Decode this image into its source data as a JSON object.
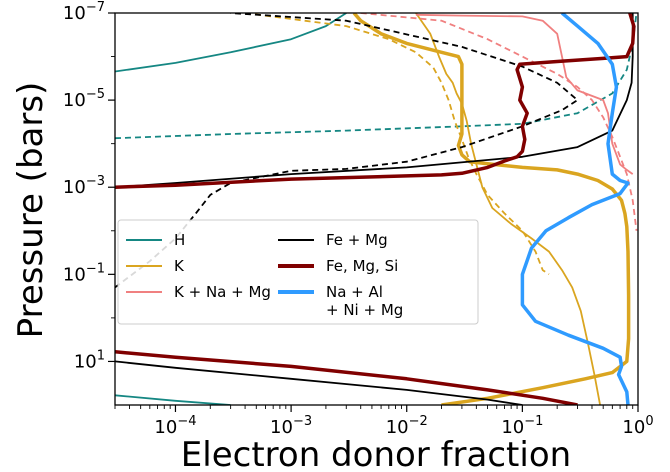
{
  "chart_data": {
    "type": "line",
    "title": "",
    "xlabel": "Electron donor fraction",
    "ylabel": "Pressure (bars)",
    "x_scale": "log",
    "y_scale": "log",
    "y_inverted": true,
    "xlim": [
      3e-05,
      1
    ],
    "ylim": [
      100,
      1e-07
    ],
    "grid": false,
    "legend_position": "center-left",
    "x_ticks": [
      {
        "value": 0.0001,
        "label": "10^-4"
      },
      {
        "value": 0.001,
        "label": "10^-3"
      },
      {
        "value": 0.01,
        "label": "10^-2"
      },
      {
        "value": 0.1,
        "label": "10^-1"
      },
      {
        "value": 1,
        "label": "10^0"
      }
    ],
    "y_ticks": [
      {
        "value": 1e-07,
        "label": "10^-7"
      },
      {
        "value": 1e-05,
        "label": "10^-5"
      },
      {
        "value": 0.001,
        "label": "10^-3"
      },
      {
        "value": 0.1,
        "label": "10^-1"
      },
      {
        "value": 10,
        "label": "10^1"
      }
    ],
    "legend": [
      {
        "label_lines": [
          "H"
        ],
        "color": "#158783",
        "width": 2
      },
      {
        "label_lines": [
          "K"
        ],
        "color": "#daa520",
        "width": 2
      },
      {
        "label_lines": [
          "K + Na + Mg"
        ],
        "color": "#f08080",
        "width": 2
      },
      {
        "label_lines": [
          "Fe + Mg"
        ],
        "color": "#000000",
        "width": 2
      },
      {
        "label_lines": [
          "Fe, Mg, Si"
        ],
        "color": "#800000",
        "width": 4
      },
      {
        "label_lines": [
          "Na + Al",
          "+ Ni + Mg"
        ],
        "color": "#2f9bff",
        "width": 4
      }
    ],
    "series": [
      {
        "name": "H",
        "color": "#158783",
        "width": 1.8,
        "dash": false,
        "points": [
          [
            3e-05,
            2.2e-06
          ],
          [
            0.0001,
            1.4e-06
          ],
          [
            0.0003,
            8e-07
          ],
          [
            0.001,
            4e-07
          ],
          [
            0.002,
            2e-07
          ],
          [
            0.003,
            1e-07
          ]
        ]
      },
      {
        "name": "H",
        "color": "#158783",
        "width": 1.8,
        "dash": false,
        "points": [
          [
            3e-05,
            60
          ],
          [
            0.0001,
            80
          ],
          [
            0.0003,
            100
          ]
        ]
      },
      {
        "name": "H",
        "color": "#158783",
        "width": 1.8,
        "dash": true,
        "points": [
          [
            3e-05,
            7.5e-05
          ],
          [
            0.0003,
            6e-05
          ],
          [
            0.003,
            5e-05
          ],
          [
            0.03,
            4e-05
          ],
          [
            0.1,
            3.5e-05
          ],
          [
            0.3,
            2e-05
          ],
          [
            0.6,
            7e-06
          ],
          [
            0.8,
            2e-06
          ],
          [
            0.9,
            5e-07
          ],
          [
            0.97,
            1e-07
          ]
        ]
      },
      {
        "name": "K",
        "color": "#daa520",
        "width": 1.8,
        "dash": true,
        "points": [
          [
            0.0004,
            1e-07
          ],
          [
            0.003,
            2e-07
          ],
          [
            0.007,
            4e-07
          ],
          [
            0.012,
            8e-07
          ],
          [
            0.017,
            1.8e-06
          ],
          [
            0.02,
            4e-06
          ],
          [
            0.023,
            1e-05
          ],
          [
            0.026,
            3e-05
          ],
          [
            0.03,
            8e-05
          ],
          [
            0.034,
            0.0002
          ],
          [
            0.04,
            0.0005
          ],
          [
            0.05,
            0.0015
          ],
          [
            0.07,
            0.004
          ],
          [
            0.1,
            0.01
          ],
          [
            0.13,
            0.03
          ],
          [
            0.15,
            0.08
          ],
          [
            0.17,
            0.1
          ]
        ]
      },
      {
        "name": "K",
        "color": "#daa520",
        "width": 1.8,
        "dash": false,
        "points": [
          [
            0.012,
            1e-07
          ],
          [
            0.016,
            3e-07
          ],
          [
            0.019,
            1e-06
          ],
          [
            0.022,
            2.5e-06
          ],
          [
            0.025,
            4e-06
          ],
          [
            0.027,
            7e-06
          ],
          [
            0.03,
            1.2e-05
          ],
          [
            0.033,
            3e-05
          ],
          [
            0.036,
            0.0001
          ],
          [
            0.04,
            0.0003
          ],
          [
            0.045,
            0.001
          ],
          [
            0.055,
            0.003
          ],
          [
            0.08,
            0.007
          ],
          [
            0.12,
            0.015
          ],
          [
            0.17,
            0.03
          ],
          [
            0.22,
            0.08
          ],
          [
            0.27,
            0.2
          ],
          [
            0.32,
            0.7
          ],
          [
            0.37,
            4
          ],
          [
            0.42,
            20
          ],
          [
            0.47,
            100
          ]
        ]
      },
      {
        "name": "K",
        "color": "#daa520",
        "width": 3.5,
        "dash": false,
        "points": [
          [
            0.0035,
            1e-07
          ],
          [
            0.004,
            1.5e-07
          ],
          [
            0.005,
            2.2e-07
          ],
          [
            0.006,
            3e-07
          ],
          [
            0.01,
            5e-07
          ],
          [
            0.02,
            8e-07
          ],
          [
            0.028,
            1e-06
          ],
          [
            0.03,
            1.5e-06
          ],
          [
            0.03,
            1e-05
          ],
          [
            0.03,
            6e-05
          ],
          [
            0.028,
            0.00011
          ],
          [
            0.03,
            0.00018
          ],
          [
            0.035,
            0.00026
          ],
          [
            0.05,
            0.00029
          ],
          [
            0.1,
            0.00035
          ],
          [
            0.2,
            0.0004
          ],
          [
            0.3,
            0.0005
          ],
          [
            0.45,
            0.0007
          ],
          [
            0.6,
            0.0011
          ],
          [
            0.72,
            0.002
          ],
          [
            0.77,
            0.004
          ],
          [
            0.8,
            0.008
          ],
          [
            0.82,
            0.03
          ],
          [
            0.83,
            0.3
          ],
          [
            0.83,
            3
          ],
          [
            0.8,
            10
          ],
          [
            0.6,
            18
          ],
          [
            0.35,
            25
          ],
          [
            0.15,
            40
          ],
          [
            0.05,
            70
          ],
          [
            0.02,
            100
          ]
        ]
      },
      {
        "name": "K + Na + Mg",
        "color": "#f08080",
        "width": 1.8,
        "dash": false,
        "points": [
          [
            0.012,
            1.1e-07
          ],
          [
            0.03,
            1.15e-07
          ],
          [
            0.1,
            1.2e-07
          ],
          [
            0.15,
            1.5e-07
          ],
          [
            0.2,
            3e-07
          ],
          [
            0.22,
            1e-06
          ],
          [
            0.24,
            3e-06
          ],
          [
            0.3,
            6e-06
          ],
          [
            0.4,
            8e-06
          ],
          [
            0.5,
            1e-05
          ],
          [
            0.55,
            2e-05
          ],
          [
            0.6,
            0.0001
          ],
          [
            0.7,
            0.0003
          ],
          [
            0.8,
            0.0004
          ],
          [
            0.9,
            0.0005
          ]
        ]
      },
      {
        "name": "K + Na + Mg",
        "color": "#f08080",
        "width": 1.8,
        "dash": true,
        "points": [
          [
            0.004,
            1e-07
          ],
          [
            0.02,
            1.5e-07
          ],
          [
            0.05,
            4e-07
          ],
          [
            0.1,
            1e-06
          ],
          [
            0.2,
            2.5e-06
          ],
          [
            0.3,
            5e-06
          ],
          [
            0.4,
            1e-05
          ],
          [
            0.5,
            2.5e-05
          ],
          [
            0.6,
            7e-05
          ],
          [
            0.7,
            0.0002
          ],
          [
            0.8,
            0.0005
          ],
          [
            0.9,
            0.002
          ],
          [
            0.97,
            0.01
          ]
        ]
      },
      {
        "name": "Fe + Mg",
        "color": "#000000",
        "width": 1.8,
        "dash": true,
        "points": [
          [
            3e-05,
            0.2
          ],
          [
            6e-05,
            0.05
          ],
          [
            0.0001,
            0.015
          ],
          [
            0.00015,
            0.004
          ],
          [
            0.0002,
            0.0015
          ],
          [
            0.0003,
            0.0008
          ],
          [
            0.001,
            0.00042
          ],
          [
            0.003,
            0.00038
          ],
          [
            0.01,
            0.00026
          ],
          [
            0.03,
            0.00012
          ],
          [
            0.1,
            4e-05
          ],
          [
            0.22,
            1.7e-05
          ],
          [
            0.3,
            1e-05
          ],
          [
            0.2,
            4e-06
          ],
          [
            0.1,
            1.7e-06
          ],
          [
            0.03,
            6e-07
          ],
          [
            0.003,
            1.5e-07
          ],
          [
            0.0003,
            1e-07
          ]
        ]
      },
      {
        "name": "Fe + Mg",
        "color": "#000000",
        "width": 1.8,
        "dash": false,
        "points": [
          [
            3e-05,
            0.001
          ],
          [
            0.0001,
            0.0008
          ],
          [
            0.001,
            0.0005
          ],
          [
            0.01,
            0.00035
          ],
          [
            0.1,
            0.0002
          ],
          [
            0.3,
            0.00012
          ],
          [
            0.6,
            5e-05
          ],
          [
            0.8,
            1e-05
          ],
          [
            0.88,
            4e-06
          ],
          [
            0.9,
            1e-06
          ],
          [
            0.9,
            1e-07
          ]
        ]
      },
      {
        "name": "Fe + Mg",
        "color": "#000000",
        "width": 1.8,
        "dash": false,
        "points": [
          [
            3e-05,
            10
          ],
          [
            0.0001,
            14
          ],
          [
            0.001,
            25
          ],
          [
            0.01,
            45
          ],
          [
            0.05,
            75
          ],
          [
            0.1,
            100
          ]
        ]
      },
      {
        "name": "Fe, Mg, Si",
        "color": "#800000",
        "width": 3.5,
        "dash": false,
        "points": [
          [
            3e-05,
            0.001
          ],
          [
            0.0001,
            0.0009
          ],
          [
            0.001,
            0.00065
          ],
          [
            0.01,
            0.00055
          ],
          [
            0.02,
            0.00052
          ],
          [
            0.03,
            0.00048
          ],
          [
            0.05,
            0.00035
          ],
          [
            0.07,
            0.00025
          ],
          [
            0.09,
            0.0002
          ],
          [
            0.1,
            0.00015
          ],
          [
            0.105,
            8e-05
          ],
          [
            0.1,
            4e-05
          ],
          [
            0.11,
            2e-05
          ],
          [
            0.095,
            1e-05
          ],
          [
            0.1,
            5e-06
          ],
          [
            0.09,
            2e-06
          ],
          [
            0.095,
            1.5e-06
          ],
          [
            0.2,
            1.3e-06
          ],
          [
            0.5,
            1.1e-06
          ],
          [
            0.8,
            1e-06
          ],
          [
            0.9,
            5e-07
          ],
          [
            0.92,
            2e-07
          ],
          [
            0.85,
            1e-07
          ]
        ]
      },
      {
        "name": "Fe, Mg, Si",
        "color": "#800000",
        "width": 3.5,
        "dash": false,
        "points": [
          [
            3e-05,
            6
          ],
          [
            0.0001,
            8
          ],
          [
            0.001,
            13
          ],
          [
            0.01,
            25
          ],
          [
            0.05,
            45
          ],
          [
            0.15,
            70
          ],
          [
            0.3,
            100
          ]
        ]
      },
      {
        "name": "Na + Al + Ni + Mg",
        "color": "#2f9bff",
        "width": 3.5,
        "dash": false,
        "points": [
          [
            0.22,
            1e-07
          ],
          [
            0.3,
            2e-07
          ],
          [
            0.45,
            5e-07
          ],
          [
            0.6,
            1.5e-06
          ],
          [
            0.65,
            5e-06
          ],
          [
            0.6,
            2e-05
          ],
          [
            0.55,
            0.0001
          ],
          [
            0.6,
            0.0005
          ],
          [
            0.7,
            0.0007
          ],
          [
            0.82,
            0.0008
          ],
          [
            0.7,
            0.0014
          ],
          [
            0.4,
            0.0025
          ],
          [
            0.25,
            0.005
          ],
          [
            0.16,
            0.01
          ],
          [
            0.12,
            0.025
          ],
          [
            0.1,
            0.1
          ],
          [
            0.1,
            0.5
          ],
          [
            0.13,
            1.2
          ],
          [
            0.25,
            2.5
          ],
          [
            0.5,
            5
          ],
          [
            0.7,
            8
          ],
          [
            0.72,
            13
          ],
          [
            0.68,
            20
          ],
          [
            0.8,
            50
          ],
          [
            0.82,
            100
          ]
        ]
      }
    ]
  }
}
